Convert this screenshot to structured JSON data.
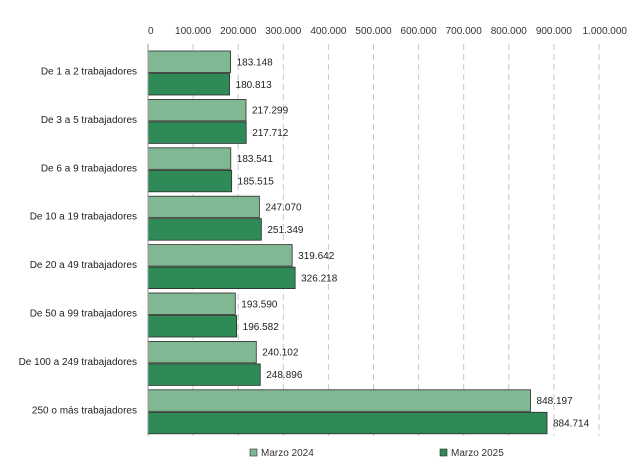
{
  "chart_data": {
    "type": "bar",
    "orientation": "horizontal",
    "title": "",
    "xlabel": "",
    "ylabel": "",
    "xlim": [
      0,
      1000000
    ],
    "x_ticks": [
      0,
      100000,
      200000,
      300000,
      400000,
      500000,
      600000,
      700000,
      800000,
      900000,
      1000000
    ],
    "x_tick_labels": [
      "0",
      "100.000",
      "200.000",
      "300.000",
      "400.000",
      "500.000",
      "600.000",
      "700.000",
      "800.000",
      "900.000",
      "1.000.000"
    ],
    "grid": true,
    "legend_position": "bottom",
    "categories": [
      "De 1 a 2 trabajadores",
      "De 3 a 5 trabajadores",
      "De 6 a 9 trabajadores",
      "De 10 a 19 trabajadores",
      "De 20 a 49 trabajadores",
      "De 50 a 99 trabajadores",
      "De 100 a 249 trabajadores",
      "250 o más trabajadores"
    ],
    "series": [
      {
        "name": "Marzo 2024",
        "color": "#7fb892",
        "values": [
          183148,
          217299,
          183541,
          247070,
          319642,
          193590,
          240102,
          848197
        ],
        "labels": [
          "183.148",
          "217.299",
          "183.541",
          "247.070",
          "319.642",
          "193.590",
          "240.102",
          "848.197"
        ]
      },
      {
        "name": "Marzo 2025",
        "color": "#2e8b57",
        "values": [
          180813,
          217712,
          185515,
          251349,
          326218,
          196582,
          248896,
          884714
        ],
        "labels": [
          "180.813",
          "217.712",
          "185.515",
          "251.349",
          "326.218",
          "196.582",
          "248.896",
          "884.714"
        ]
      }
    ]
  }
}
